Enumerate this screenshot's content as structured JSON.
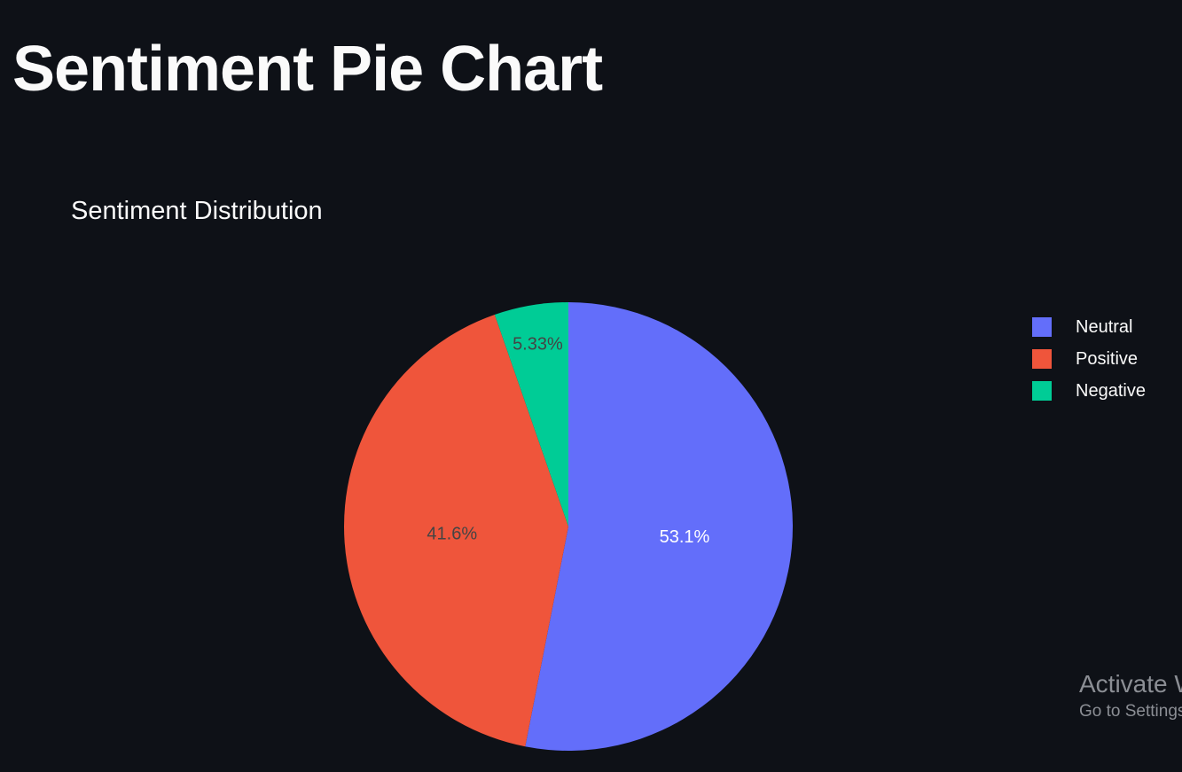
{
  "page": {
    "title": "Sentiment Pie Chart"
  },
  "watermark": {
    "line1": "Activate Windows",
    "line2": "Go to Settings to activate Windows."
  },
  "chart_data": {
    "type": "pie",
    "title": "Sentiment Distribution",
    "labels": [
      "Neutral",
      "Positive",
      "Negative"
    ],
    "values": [
      53.1,
      41.6,
      5.33
    ],
    "text_labels": [
      "53.1%",
      "41.6%",
      "5.33%"
    ],
    "colors": [
      "#636efa",
      "#ef553b",
      "#00cc96"
    ],
    "label_colors": [
      "#ffffff",
      "#444444",
      "#444444"
    ],
    "legend_position": "right",
    "sort": "descending",
    "direction": "clockwise",
    "start": "top"
  }
}
